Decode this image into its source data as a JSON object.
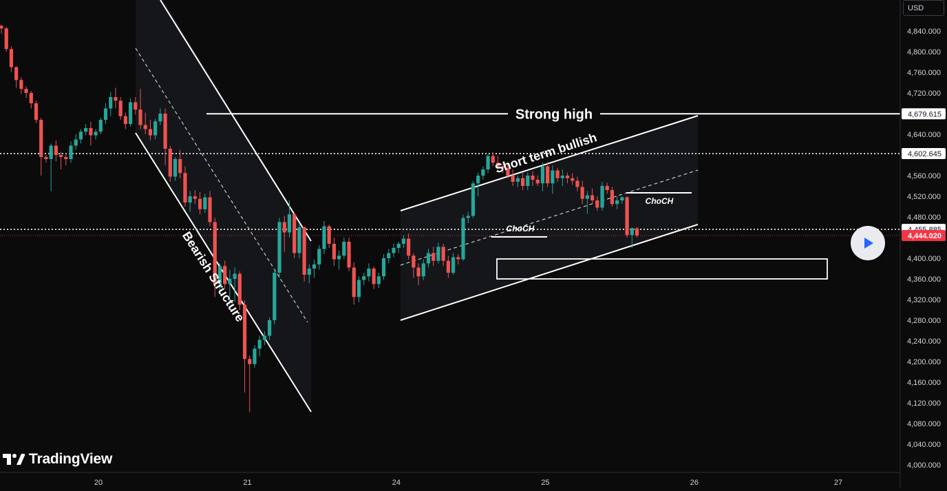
{
  "currency_label": "USD",
  "branding": {
    "logo_text": "TradingView",
    "logo_icon": "tradingview-logo-icon"
  },
  "play_button": {
    "icon": "play-icon"
  },
  "colors": {
    "background": "#0b0b0c",
    "up": "#26a69a",
    "down": "#ef5350",
    "current_price": "#f23645",
    "drawing": "#ffffff",
    "axis_text": "#d1d4dc"
  },
  "annotations": {
    "strong_high": "Strong high",
    "short_term_bullish": "Short term bullish",
    "bearish_structure": "Bearish Structure",
    "choch_1": "ChoCH",
    "choch_2": "ChoCH"
  },
  "chart_data": {
    "type": "candlestick",
    "symbol_currency": "USD",
    "y_axis": {
      "ticks": [
        4000,
        4040,
        4080,
        4120,
        4160,
        4200,
        4240,
        4280,
        4320,
        4360,
        4400,
        4440,
        4480,
        4520,
        4560,
        4600,
        4640,
        4680,
        4720,
        4760,
        4800,
        4840
      ],
      "tick_labels": [
        "4,000.000",
        "4,040.000",
        "4,080.000",
        "4,120.000",
        "4,160.000",
        "4,200.000",
        "4,240.000",
        "4,280.000",
        "4,320.000",
        "4,360.000",
        "4,400.000",
        "4,440.000",
        "4,480.000",
        "4,520.000",
        "4,560.000",
        "4,600.000",
        "4,640.000",
        "4,680.000",
        "4,720.000",
        "4,760.000",
        "4,800.000",
        "4,840.000"
      ],
      "range": [
        3988,
        4878
      ]
    },
    "x_axis": {
      "tick_labels": [
        "20",
        "21",
        "24",
        "25",
        "26",
        "27"
      ]
    },
    "price_levels": [
      {
        "name": "strong-high",
        "value": 4679.615,
        "label": "4,679.615",
        "style": "solid"
      },
      {
        "name": "level-1",
        "value": 4602.645,
        "label": "4,602.645",
        "style": "dotted"
      },
      {
        "name": "level-2",
        "value": 4455.885,
        "label": "4,455.885",
        "style": "dotted"
      },
      {
        "name": "current-price",
        "value": 4444.02,
        "label": "4,444.020",
        "style": "current"
      }
    ],
    "candles": [
      [
        4850,
        4852,
        4835,
        4845
      ],
      [
        4845,
        4848,
        4800,
        4805
      ],
      [
        4805,
        4810,
        4760,
        4770
      ],
      [
        4770,
        4772,
        4730,
        4745
      ],
      [
        4745,
        4750,
        4718,
        4728
      ],
      [
        4728,
        4733,
        4710,
        4720
      ],
      [
        4720,
        4724,
        4690,
        4700
      ],
      [
        4700,
        4705,
        4662,
        4668
      ],
      [
        4668,
        4672,
        4560,
        4596
      ],
      [
        4596,
        4600,
        4585,
        4592
      ],
      [
        4592,
        4622,
        4530,
        4618
      ],
      [
        4618,
        4628,
        4588,
        4600
      ],
      [
        4600,
        4606,
        4572,
        4596
      ],
      [
        4596,
        4603,
        4580,
        4592
      ],
      [
        4592,
        4626,
        4585,
        4618
      ],
      [
        4618,
        4640,
        4610,
        4630
      ],
      [
        4630,
        4650,
        4622,
        4645
      ],
      [
        4645,
        4660,
        4638,
        4652
      ],
      [
        4652,
        4664,
        4618,
        4638
      ],
      [
        4638,
        4650,
        4630,
        4645
      ],
      [
        4645,
        4672,
        4640,
        4668
      ],
      [
        4668,
        4700,
        4660,
        4690
      ],
      [
        4690,
        4722,
        4675,
        4712
      ],
      [
        4712,
        4730,
        4690,
        4705
      ],
      [
        4705,
        4712,
        4668,
        4675
      ],
      [
        4675,
        4682,
        4650,
        4660
      ],
      [
        4660,
        4710,
        4655,
        4702
      ],
      [
        4702,
        4712,
        4678,
        4688
      ],
      [
        4688,
        4728,
        4650,
        4658
      ],
      [
        4658,
        4682,
        4640,
        4650
      ],
      [
        4650,
        4668,
        4628,
        4638
      ],
      [
        4638,
        4670,
        4630,
        4665
      ],
      [
        4665,
        4690,
        4658,
        4680
      ],
      [
        4680,
        4690,
        4580,
        4612
      ],
      [
        4612,
        4618,
        4548,
        4558
      ],
      [
        4558,
        4596,
        4550,
        4592
      ],
      [
        4592,
        4610,
        4555,
        4565
      ],
      [
        4565,
        4578,
        4500,
        4508
      ],
      [
        4508,
        4530,
        4490,
        4520
      ],
      [
        4520,
        4532,
        4505,
        4515
      ],
      [
        4515,
        4528,
        4485,
        4495
      ],
      [
        4495,
        4525,
        4488,
        4518
      ],
      [
        4518,
        4530,
        4462,
        4470
      ],
      [
        4470,
        4478,
        4325,
        4350
      ],
      [
        4350,
        4390,
        4330,
        4385
      ],
      [
        4385,
        4395,
        4340,
        4350
      ],
      [
        4350,
        4378,
        4310,
        4360
      ],
      [
        4360,
        4382,
        4315,
        4370
      ],
      [
        4370,
        4375,
        4300,
        4310
      ],
      [
        4310,
        4318,
        4140,
        4205
      ],
      [
        4205,
        4212,
        4102,
        4195
      ],
      [
        4195,
        4232,
        4188,
        4225
      ],
      [
        4225,
        4250,
        4210,
        4242
      ],
      [
        4242,
        4258,
        4232,
        4250
      ],
      [
        4250,
        4285,
        4242,
        4280
      ],
      [
        4280,
        4380,
        4272,
        4372
      ],
      [
        4372,
        4478,
        4362,
        4470
      ],
      [
        4470,
        4482,
        4412,
        4450
      ],
      [
        4450,
        4512,
        4440,
        4485
      ],
      [
        4485,
        4488,
        4400,
        4410
      ],
      [
        4410,
        4468,
        4400,
        4460
      ],
      [
        4460,
        4462,
        4355,
        4368
      ],
      [
        4368,
        4388,
        4352,
        4380
      ],
      [
        4380,
        4398,
        4362,
        4388
      ],
      [
        4388,
        4425,
        4378,
        4418
      ],
      [
        4418,
        4472,
        4408,
        4462
      ],
      [
        4462,
        4465,
        4420,
        4428
      ],
      [
        4428,
        4440,
        4385,
        4398
      ],
      [
        4398,
        4415,
        4378,
        4405
      ],
      [
        4405,
        4440,
        4398,
        4432
      ],
      [
        4432,
        4440,
        4375,
        4382
      ],
      [
        4382,
        4392,
        4310,
        4325
      ],
      [
        4325,
        4365,
        4315,
        4358
      ],
      [
        4358,
        4372,
        4348,
        4365
      ],
      [
        4365,
        4390,
        4355,
        4380
      ],
      [
        4380,
        4384,
        4340,
        4350
      ],
      [
        4350,
        4372,
        4342,
        4365
      ],
      [
        4365,
        4408,
        4358,
        4400
      ],
      [
        4400,
        4418,
        4390,
        4410
      ],
      [
        4410,
        4428,
        4402,
        4420
      ],
      [
        4420,
        4432,
        4410,
        4428
      ],
      [
        4428,
        4444,
        4420,
        4438
      ],
      [
        4438,
        4448,
        4398,
        4405
      ],
      [
        4405,
        4410,
        4362,
        4382
      ],
      [
        4382,
        4390,
        4348,
        4365
      ],
      [
        4365,
        4398,
        4358,
        4390
      ],
      [
        4390,
        4418,
        4382,
        4410
      ],
      [
        4410,
        4422,
        4385,
        4395
      ],
      [
        4395,
        4430,
        4390,
        4422
      ],
      [
        4422,
        4428,
        4385,
        4395
      ],
      [
        4395,
        4405,
        4362,
        4372
      ],
      [
        4372,
        4410,
        4368,
        4402
      ],
      [
        4402,
        4408,
        4388,
        4398
      ],
      [
        4398,
        4484,
        4395,
        4478
      ],
      [
        4478,
        4490,
        4468,
        4482
      ],
      [
        4482,
        4550,
        4478,
        4545
      ],
      [
        4545,
        4566,
        4520,
        4560
      ],
      [
        4560,
        4578,
        4552,
        4572
      ],
      [
        4572,
        4602,
        4565,
        4598
      ],
      [
        4598,
        4605,
        4578,
        4585
      ],
      [
        4585,
        4598,
        4572,
        4578
      ],
      [
        4578,
        4582,
        4565,
        4575
      ],
      [
        4575,
        4585,
        4555,
        4560
      ],
      [
        4560,
        4572,
        4540,
        4548
      ],
      [
        4548,
        4560,
        4538,
        4555
      ],
      [
        4555,
        4565,
        4532,
        4540
      ],
      [
        4540,
        4566,
        4532,
        4560
      ],
      [
        4560,
        4568,
        4540,
        4552
      ],
      [
        4552,
        4560,
        4540,
        4545
      ],
      [
        4545,
        4586,
        4530,
        4578
      ],
      [
        4578,
        4586,
        4538,
        4545
      ],
      [
        4545,
        4580,
        4525,
        4570
      ],
      [
        4570,
        4575,
        4548,
        4555
      ],
      [
        4555,
        4572,
        4540,
        4560
      ],
      [
        4560,
        4566,
        4545,
        4555
      ],
      [
        4555,
        4565,
        4542,
        4550
      ],
      [
        4550,
        4558,
        4530,
        4538
      ],
      [
        4538,
        4550,
        4505,
        4515
      ],
      [
        4515,
        4530,
        4486,
        4522
      ],
      [
        4522,
        4535,
        4505,
        4512
      ],
      [
        4512,
        4520,
        4492,
        4498
      ],
      [
        4498,
        4548,
        4492,
        4540
      ],
      [
        4540,
        4546,
        4525,
        4532
      ],
      [
        4532,
        4538,
        4500,
        4505
      ],
      [
        4505,
        4520,
        4495,
        4512
      ],
      [
        4512,
        4520,
        4505,
        4518
      ],
      [
        4518,
        4520,
        4440,
        4445
      ],
      [
        4445,
        4460,
        4420,
        4458
      ],
      [
        4458,
        4460,
        4440,
        4444
      ]
    ],
    "x_tick_bar_index": [
      14,
      44,
      74,
      104,
      134,
      163
    ]
  }
}
